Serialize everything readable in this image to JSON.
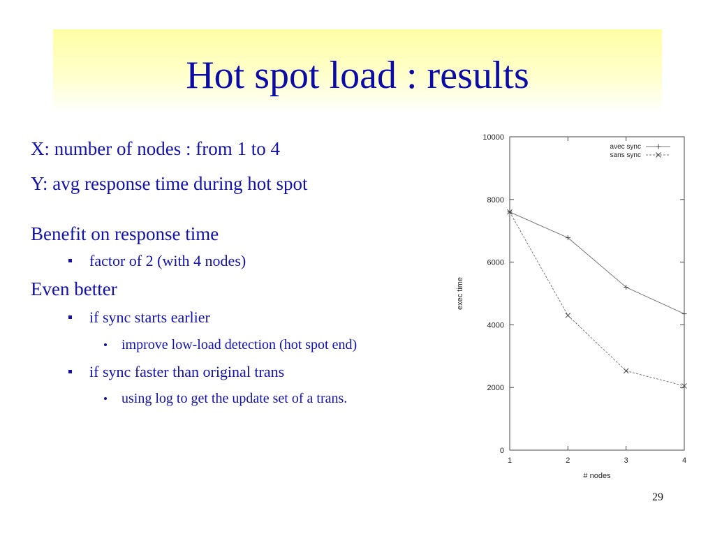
{
  "slide": {
    "title": "Hot spot load : results",
    "page_number": "29",
    "lines": {
      "x_desc": "X: number of nodes : from 1 to 4",
      "y_desc": "Y: avg response time during hot spot",
      "benefit": "Benefit on response time",
      "factor": "factor of 2 (with 4 nodes)",
      "even_better": "Even better",
      "sync_earlier": "if sync starts earlier",
      "improve_detection": "improve low-load detection (hot spot end)",
      "sync_faster": "if sync faster than original trans",
      "using_log": "using log to get  the update set of a trans."
    }
  },
  "chart_data": {
    "type": "line",
    "xlabel": "# nodes",
    "ylabel": "exec time",
    "x": [
      1,
      2,
      3,
      4
    ],
    "xlim": [
      1,
      4
    ],
    "ylim": [
      0,
      10000
    ],
    "xticks": [
      "1",
      "2",
      "3",
      "4"
    ],
    "yticks": [
      "0",
      "2000",
      "4000",
      "6000",
      "8000",
      "10000"
    ],
    "legend_position": "top-right",
    "grid": false,
    "series": [
      {
        "name": "avec sync",
        "values": [
          7600,
          6780,
          5200,
          4350
        ],
        "marker": "+",
        "line": "solid",
        "color": "#777777"
      },
      {
        "name": "sans sync",
        "values": [
          7600,
          4300,
          2530,
          2050
        ],
        "marker": "x",
        "line": "dashed",
        "color": "#777777"
      }
    ]
  }
}
